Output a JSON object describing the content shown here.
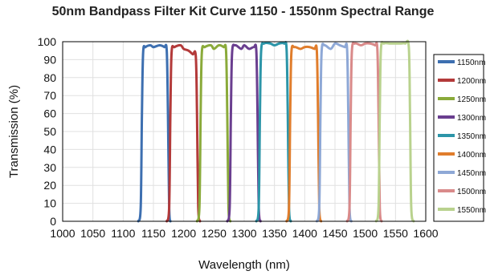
{
  "chart_data": {
    "type": "line",
    "title": "50nm Bandpass Filter Kit Curve 1150 - 1550nm Spectral Range",
    "xlabel": "Wavelength (nm)",
    "ylabel": "Transmission (%)",
    "xlim": [
      1000,
      1600
    ],
    "ylim": [
      0,
      100
    ],
    "xticks": [
      1000,
      1050,
      1100,
      1150,
      1200,
      1250,
      1300,
      1350,
      1400,
      1450,
      1500,
      1550,
      1600
    ],
    "yticks": [
      0,
      10,
      20,
      30,
      40,
      50,
      60,
      70,
      80,
      90,
      100
    ],
    "grid": true,
    "legend_position": "right",
    "series": [
      {
        "name": "1150nm",
        "color": "#3d6fb0",
        "x": [
          1125,
          1129,
          1131,
          1133,
          1137,
          1145,
          1150,
          1160,
          1168,
          1172,
          1174,
          1176,
          1178
        ],
        "y": [
          0,
          8,
          60,
          94,
          97,
          98,
          97,
          98,
          97,
          95,
          60,
          8,
          0
        ]
      },
      {
        "name": "1200nm",
        "color": "#b33a3a",
        "x": [
          1172,
          1176,
          1178,
          1180,
          1185,
          1195,
          1200,
          1208,
          1215,
          1220,
          1222,
          1224,
          1227
        ],
        "y": [
          0,
          8,
          60,
          94,
          97,
          98,
          96,
          95,
          93,
          92,
          60,
          8,
          0
        ]
      },
      {
        "name": "1250nm",
        "color": "#8aaa3a",
        "x": [
          1222,
          1226,
          1228,
          1230,
          1235,
          1245,
          1250,
          1258,
          1266,
          1270,
          1272,
          1274,
          1277
        ],
        "y": [
          0,
          8,
          60,
          94,
          97,
          98,
          96,
          98,
          97,
          95,
          60,
          8,
          0
        ]
      },
      {
        "name": "1300nm",
        "color": "#6a3e8f",
        "x": [
          1272,
          1276,
          1278,
          1280,
          1285,
          1295,
          1300,
          1308,
          1316,
          1320,
          1322,
          1324,
          1327
        ],
        "y": [
          0,
          8,
          60,
          94,
          98,
          96,
          98,
          96,
          97,
          95,
          60,
          8,
          0
        ]
      },
      {
        "name": "1350nm",
        "color": "#2c95a8",
        "x": [
          1320,
          1324,
          1326,
          1328,
          1333,
          1343,
          1350,
          1358,
          1366,
          1370,
          1372,
          1374,
          1377
        ],
        "y": [
          0,
          8,
          60,
          95,
          99,
          99,
          98,
          99,
          99,
          96,
          60,
          8,
          0
        ]
      },
      {
        "name": "1400nm",
        "color": "#e07d2c",
        "x": [
          1370,
          1374,
          1376,
          1378,
          1383,
          1393,
          1400,
          1408,
          1416,
          1420,
          1422,
          1424,
          1427
        ],
        "y": [
          0,
          8,
          60,
          94,
          97,
          96,
          97,
          97,
          96,
          95,
          60,
          8,
          0
        ]
      },
      {
        "name": "1450nm",
        "color": "#8ea8d6",
        "x": [
          1420,
          1424,
          1426,
          1428,
          1433,
          1443,
          1450,
          1458,
          1466,
          1470,
          1472,
          1474,
          1477
        ],
        "y": [
          0,
          8,
          60,
          95,
          98,
          96,
          99,
          98,
          97,
          96,
          60,
          8,
          0
        ]
      },
      {
        "name": "1500nm",
        "color": "#d98a8a",
        "x": [
          1470,
          1474,
          1476,
          1478,
          1483,
          1493,
          1500,
          1508,
          1516,
          1520,
          1522,
          1524,
          1527
        ],
        "y": [
          0,
          8,
          60,
          95,
          99,
          98,
          99,
          99,
          98,
          96,
          60,
          8,
          0
        ]
      },
      {
        "name": "1550nm",
        "color": "#b9d28e",
        "x": [
          1518,
          1522,
          1524,
          1526,
          1531,
          1541,
          1550,
          1558,
          1566,
          1572,
          1574,
          1576,
          1580
        ],
        "y": [
          0,
          8,
          60,
          96,
          99,
          99,
          99,
          99,
          99,
          97,
          60,
          8,
          0
        ]
      }
    ]
  }
}
